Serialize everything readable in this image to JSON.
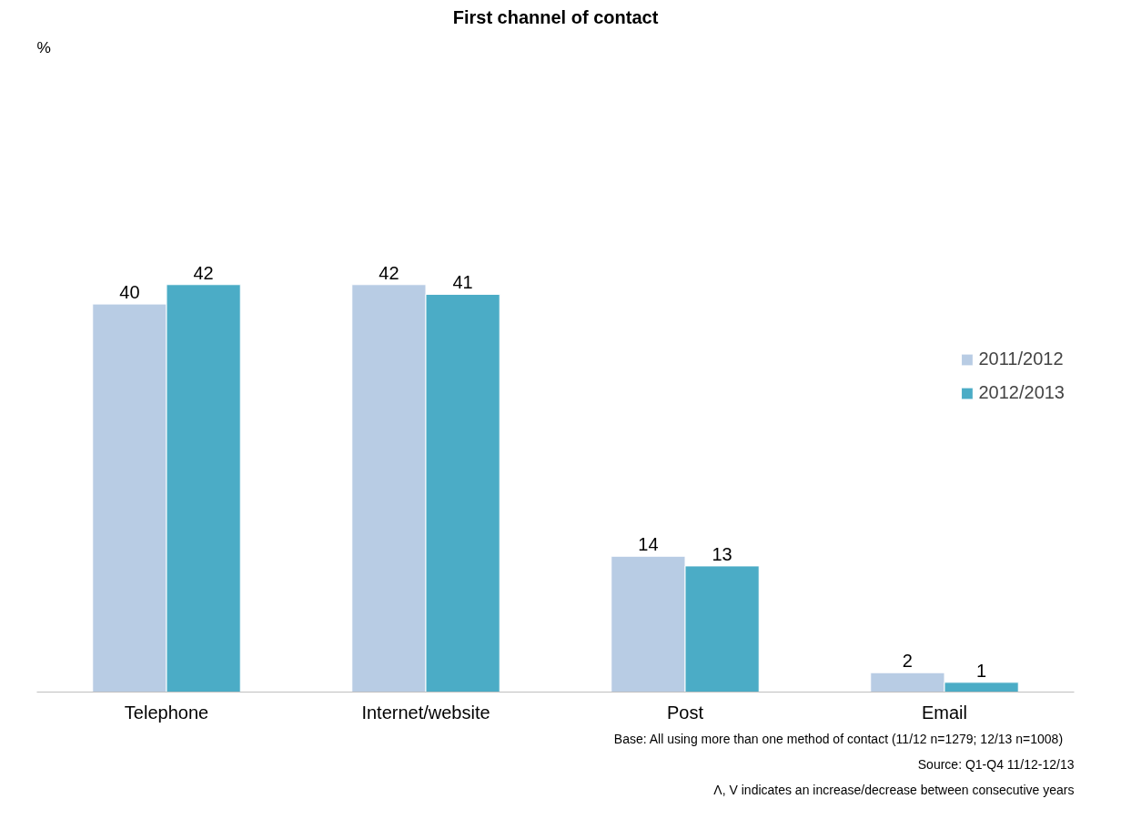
{
  "chart_data": {
    "type": "bar",
    "title": "First channel of contact",
    "categories": [
      "Telephone",
      "Internet/website",
      "Post",
      "Email"
    ],
    "series": [
      {
        "name": "2011/2012",
        "color": "#b8cce4",
        "values": [
          40,
          42,
          14,
          2
        ]
      },
      {
        "name": "2012/2013",
        "color": "#4bacc6",
        "values": [
          42,
          41,
          13,
          1
        ]
      }
    ],
    "data_labels": true,
    "legend": "right",
    "grid": false,
    "annotations": [
      "%",
      "Base: All using more than one method of contact (11/12  n=1279;  12/13  n=1008)",
      "Source: Q1-Q4 11/12-12/13",
      "Λ, V indicates an increase/decrease between consecutive years"
    ]
  }
}
